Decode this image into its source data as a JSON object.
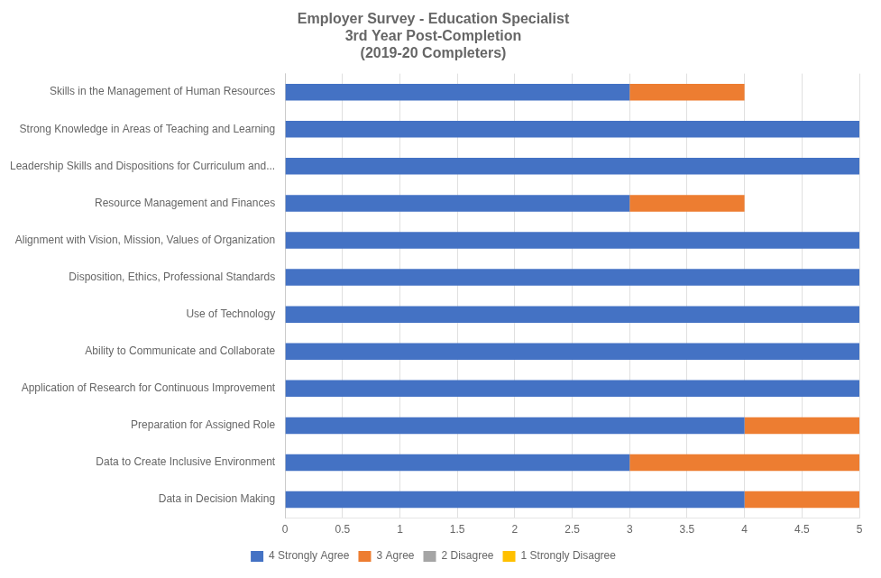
{
  "chart_data": {
    "type": "bar",
    "orientation": "horizontal",
    "stacked": true,
    "title": "Employer Survey - Education Specialist\n3rd Year Post-Completion\n(2019-20 Completers)",
    "categories": [
      "Data in Decision Making",
      "Data to Create Inclusive Environment",
      "Preparation for Assigned Role",
      "Application of Research for Continuous Improvement",
      "Ability to Communicate and Collaborate",
      "Use of Technology",
      "Disposition, Ethics, Professional Standards",
      "Alignment with Vision, Mission, Values of Organization",
      "Resource Management and Finances",
      "Leadership Skills and Dispositions for Curriculum and...",
      "Strong Knowledge in Areas of Teaching and Learning",
      "Skills in the Management of Human Resources"
    ],
    "series": [
      {
        "name": "4 Strongly Agree",
        "color": "#4472C4",
        "values": [
          4,
          3,
          4,
          5,
          5,
          5,
          5,
          5,
          3,
          5,
          5,
          3
        ]
      },
      {
        "name": "3 Agree",
        "color": "#ED7D31",
        "values": [
          1,
          2,
          1,
          0,
          0,
          0,
          0,
          0,
          1,
          0,
          0,
          1
        ]
      },
      {
        "name": "2 Disagree",
        "color": "#A5A5A5",
        "values": [
          0,
          0,
          0,
          0,
          0,
          0,
          0,
          0,
          0,
          0,
          0,
          0
        ]
      },
      {
        "name": "1 Strongly Disagree",
        "color": "#FFC000",
        "values": [
          0,
          0,
          0,
          0,
          0,
          0,
          0,
          0,
          0,
          0,
          0,
          0
        ]
      }
    ],
    "xlim": [
      0,
      5
    ],
    "xticks": [
      0,
      0.5,
      1,
      1.5,
      2,
      2.5,
      3,
      3.5,
      4,
      4.5,
      5
    ],
    "grid": true,
    "legend": "bottom"
  }
}
